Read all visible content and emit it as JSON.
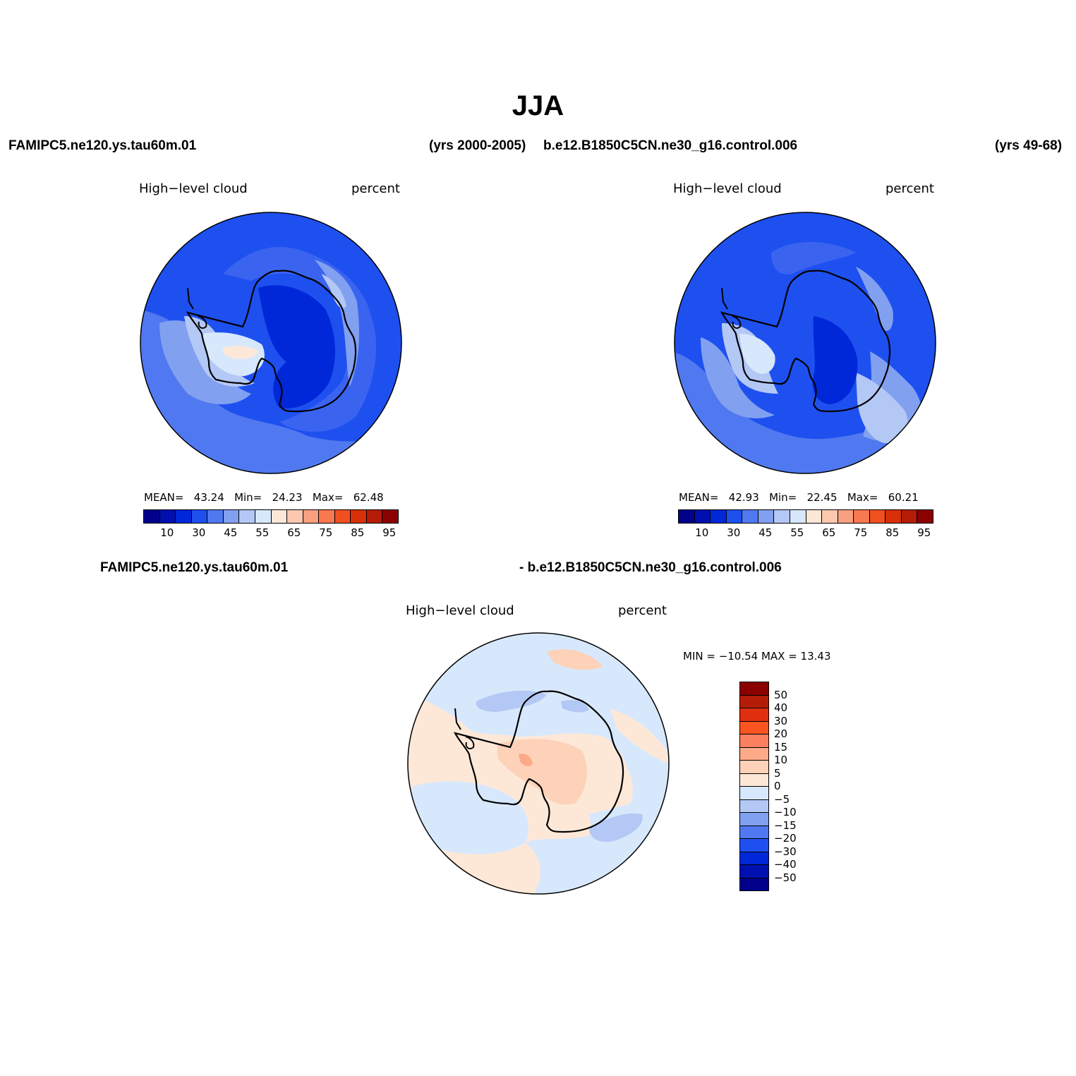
{
  "title": "JJA",
  "top_left": {
    "case_name": "FAMIPC5.ne120.ys.tau60m.01",
    "years": "(yrs 2000-2005)",
    "variable": "High−level cloud",
    "units": "percent",
    "stats": {
      "mean_label": "MEAN=",
      "mean": "43.24",
      "min_label": "Min=",
      "min": "24.23",
      "max_label": "Max=",
      "max": "62.48"
    }
  },
  "top_right": {
    "case_name": "b.e12.B1850C5CN.ne30_g16.control.006",
    "years": "(yrs 49-68)",
    "variable": "High−level cloud",
    "units": "percent",
    "stats": {
      "mean_label": "MEAN=",
      "mean": "42.93",
      "min_label": "Min=",
      "min": "22.45",
      "max_label": "Max=",
      "max": "60.21"
    }
  },
  "bottom": {
    "case_left": "FAMIPC5.ne120.ys.tau60m.01",
    "case_right": "- b.e12.B1850C5CN.ne30_g16.control.006",
    "variable": "High−level cloud",
    "units": "percent",
    "minmax": "MIN = −10.54  MAX =   13.43"
  },
  "colorbar_top": {
    "colors": [
      "#00008b",
      "#0010b0",
      "#0028d8",
      "#1e50f0",
      "#5078f0",
      "#82a0f0",
      "#b4c8f5",
      "#d7e8fc",
      "#fde8d8",
      "#fcc8b0",
      "#f8a080",
      "#f87850",
      "#f05020",
      "#d83008",
      "#b41c08",
      "#8b0000"
    ],
    "tick_labels": [
      "10",
      "30",
      "45",
      "55",
      "65",
      "75",
      "85",
      "95"
    ]
  },
  "colorbar_diff": {
    "colors": [
      "#8b0000",
      "#b41c08",
      "#e03010",
      "#fa5520",
      "#fa8060",
      "#fcaa88",
      "#fdd2b8",
      "#fde8d8",
      "#d7e8fc",
      "#b4c8f5",
      "#82a0f0",
      "#5078f0",
      "#1e50f0",
      "#0028d8",
      "#0010b0",
      "#00008b"
    ],
    "tick_labels": [
      "50",
      "40",
      "30",
      "20",
      "15",
      "10",
      "5",
      "0",
      "−5",
      "−10",
      "−15",
      "−20",
      "−30",
      "−40",
      "−50"
    ]
  },
  "map_colors": {
    "c25": "#0028d8",
    "c35": "#1e50f0",
    "c40": "#3a64f0",
    "c45": "#5078f0",
    "c50": "#82a0f0",
    "c55": "#b4c8f5",
    "c60": "#d7e8fc",
    "c65": "#fde8d8",
    "d_pos1": "#fde8d8",
    "d_pos2": "#fdd2b8",
    "d_pos3": "#fcaa88",
    "d_neg1": "#d7e8fc",
    "d_neg2": "#b4c8f5"
  }
}
